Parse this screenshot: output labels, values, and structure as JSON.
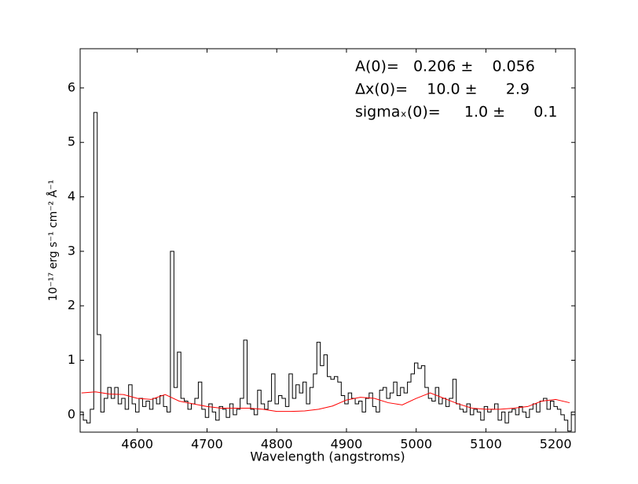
{
  "chart_data": {
    "type": "step",
    "xlabel": "Wavelength (angstroms)",
    "ylabel": "10⁻¹⁷ erg s⁻¹ cm⁻² Å⁻¹",
    "annotations": [
      "A(0)=   0.206 ±    0.056",
      "Δx(0)=    10.0 ±      2.9",
      "sigmaₓ(0)=     1.0 ±      0.1"
    ],
    "xlim": [
      4518,
      5228
    ],
    "ylim": [
      -0.32,
      6.72
    ],
    "xticks": [
      4600,
      4700,
      4800,
      4900,
      5000,
      5100,
      5200
    ],
    "yticks": [
      0,
      1,
      2,
      3,
      4,
      5,
      6
    ],
    "spectrum": {
      "color": "#000000",
      "x": [
        4520,
        4525,
        4530,
        4535,
        4540,
        4545,
        4550,
        4555,
        4560,
        4565,
        4570,
        4575,
        4580,
        4585,
        4590,
        4595,
        4600,
        4605,
        4610,
        4615,
        4620,
        4625,
        4630,
        4635,
        4640,
        4645,
        4650,
        4655,
        4660,
        4665,
        4670,
        4675,
        4680,
        4685,
        4690,
        4695,
        4700,
        4705,
        4710,
        4715,
        4720,
        4725,
        4730,
        4735,
        4740,
        4745,
        4750,
        4755,
        4760,
        4765,
        4770,
        4775,
        4780,
        4785,
        4790,
        4795,
        4800,
        4805,
        4810,
        4815,
        4820,
        4825,
        4830,
        4835,
        4840,
        4845,
        4850,
        4855,
        4860,
        4865,
        4870,
        4875,
        4880,
        4885,
        4890,
        4895,
        4900,
        4905,
        4910,
        4915,
        4920,
        4925,
        4930,
        4935,
        4940,
        4945,
        4950,
        4955,
        4960,
        4965,
        4970,
        4975,
        4980,
        4985,
        4990,
        4995,
        5000,
        5005,
        5010,
        5015,
        5020,
        5025,
        5030,
        5035,
        5040,
        5045,
        5050,
        5055,
        5060,
        5065,
        5070,
        5075,
        5080,
        5085,
        5090,
        5095,
        5100,
        5105,
        5110,
        5115,
        5120,
        5125,
        5130,
        5135,
        5140,
        5145,
        5150,
        5155,
        5160,
        5165,
        5170,
        5175,
        5180,
        5185,
        5190,
        5195,
        5200,
        5205,
        5210,
        5215,
        5220,
        5225
      ],
      "values": [
        0.05,
        -0.1,
        -0.15,
        0.1,
        5.55,
        1.47,
        0.05,
        0.3,
        0.5,
        0.3,
        0.5,
        0.2,
        0.3,
        0.1,
        0.55,
        0.2,
        0.05,
        0.3,
        0.15,
        0.25,
        0.1,
        0.3,
        0.2,
        0.35,
        0.15,
        0.05,
        3.0,
        0.5,
        1.15,
        0.3,
        0.25,
        0.1,
        0.2,
        0.3,
        0.6,
        0.1,
        -0.05,
        0.2,
        0.05,
        -0.1,
        0.15,
        0.1,
        -0.05,
        0.2,
        0.0,
        0.1,
        0.3,
        1.37,
        0.2,
        0.1,
        0.0,
        0.45,
        0.2,
        0.1,
        0.25,
        0.75,
        0.2,
        0.35,
        0.3,
        0.15,
        0.75,
        0.3,
        0.55,
        0.4,
        0.6,
        0.2,
        0.5,
        0.75,
        1.33,
        0.9,
        1.1,
        0.7,
        0.65,
        0.7,
        0.6,
        0.35,
        0.2,
        0.4,
        0.3,
        0.2,
        0.25,
        0.05,
        0.3,
        0.4,
        0.15,
        0.05,
        0.45,
        0.5,
        0.3,
        0.4,
        0.6,
        0.35,
        0.5,
        0.4,
        0.6,
        0.75,
        0.95,
        0.85,
        0.9,
        0.5,
        0.3,
        0.25,
        0.5,
        0.2,
        0.3,
        0.15,
        0.3,
        0.65,
        0.2,
        0.1,
        0.05,
        0.2,
        0.0,
        0.1,
        0.05,
        -0.1,
        0.15,
        0.05,
        0.1,
        0.2,
        -0.1,
        0.05,
        -0.15,
        0.05,
        0.1,
        0.0,
        0.15,
        0.05,
        -0.05,
        0.1,
        0.2,
        0.05,
        0.25,
        0.3,
        0.1,
        0.25,
        0.15,
        0.1,
        0.0,
        -0.1,
        -0.3,
        0.05
      ]
    },
    "fit": {
      "color": "#ff0000",
      "x": [
        4520,
        4540,
        4560,
        4580,
        4600,
        4620,
        4640,
        4660,
        4680,
        4700,
        4720,
        4740,
        4760,
        4780,
        4800,
        4820,
        4840,
        4860,
        4880,
        4900,
        4920,
        4940,
        4960,
        4980,
        5000,
        5020,
        5040,
        5060,
        5080,
        5100,
        5120,
        5140,
        5160,
        5180,
        5200,
        5220
      ],
      "values": [
        0.4,
        0.42,
        0.38,
        0.37,
        0.3,
        0.28,
        0.37,
        0.25,
        0.2,
        0.15,
        0.12,
        0.12,
        0.12,
        0.1,
        0.06,
        0.06,
        0.07,
        0.1,
        0.16,
        0.27,
        0.32,
        0.3,
        0.22,
        0.18,
        0.3,
        0.4,
        0.3,
        0.2,
        0.12,
        0.1,
        0.1,
        0.12,
        0.15,
        0.25,
        0.28,
        0.22
      ]
    }
  }
}
